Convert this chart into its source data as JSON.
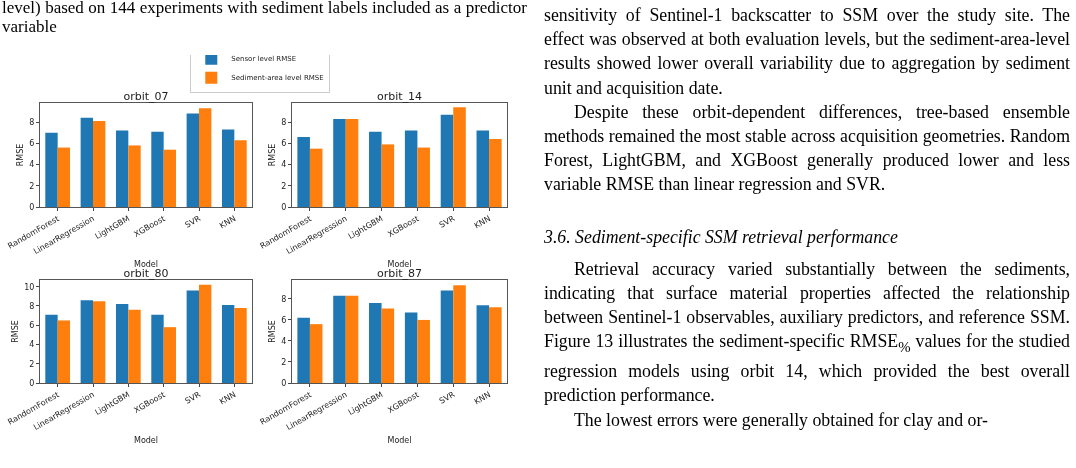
{
  "chart_data": [
    {
      "type": "bar",
      "title": "orbit_07",
      "xlabel": "Model",
      "ylabel": "RMSE",
      "legend": "top",
      "categories": [
        "RandomForest",
        "LinearRegression",
        "LightGBM",
        "XGBoost",
        "SVR",
        "KNN"
      ],
      "ylim": [
        0,
        9.8
      ],
      "yticks": [
        0,
        2,
        4,
        6,
        8
      ],
      "series": [
        {
          "name": "Sensor level RMSE",
          "color": "#1f77b4",
          "values": [
            7.0,
            8.4,
            7.2,
            7.1,
            8.8,
            7.3
          ]
        },
        {
          "name": "Sediment-area level RMSE",
          "color": "#ff7f0e",
          "values": [
            5.6,
            8.1,
            5.8,
            5.4,
            9.3,
            6.3
          ]
        }
      ]
    },
    {
      "type": "bar",
      "title": "orbit_14",
      "xlabel": "Model",
      "ylabel": "RMSE",
      "categories": [
        "RandomForest",
        "LinearRegression",
        "LightGBM",
        "XGBoost",
        "SVR",
        "KNN"
      ],
      "ylim": [
        0,
        9.8
      ],
      "yticks": [
        0,
        2,
        4,
        6,
        8
      ],
      "series": [
        {
          "color": "#1f77b4",
          "values": [
            6.6,
            8.3,
            7.1,
            7.2,
            8.7,
            7.2
          ]
        },
        {
          "color": "#ff7f0e",
          "values": [
            5.5,
            8.3,
            5.9,
            5.6,
            9.4,
            6.4
          ]
        }
      ]
    },
    {
      "type": "bar",
      "title": "orbit_80",
      "xlabel": "Model",
      "ylabel": "RMSE",
      "categories": [
        "RandomForest",
        "LinearRegression",
        "LightGBM",
        "XGBoost",
        "SVR",
        "KNN"
      ],
      "ylim": [
        0,
        10.7
      ],
      "yticks": [
        0,
        2,
        4,
        6,
        8,
        10
      ],
      "series": [
        {
          "color": "#1f77b4",
          "values": [
            7.1,
            8.6,
            8.2,
            7.1,
            9.6,
            8.1
          ]
        },
        {
          "color": "#ff7f0e",
          "values": [
            6.5,
            8.5,
            7.6,
            5.8,
            10.2,
            7.8
          ]
        }
      ]
    },
    {
      "type": "bar",
      "title": "orbit_87",
      "xlabel": "Model",
      "ylabel": "RMSE",
      "categories": [
        "RandomForest",
        "LinearRegression",
        "LightGBM",
        "XGBoost",
        "SVR",
        "KNN"
      ],
      "ylim": [
        0,
        9.8
      ],
      "yticks": [
        0,
        2,
        4,
        6,
        8
      ],
      "series": [
        {
          "color": "#1f77b4",
          "values": [
            6.2,
            8.3,
            7.6,
            6.7,
            8.8,
            7.4
          ]
        },
        {
          "color": "#ff7f0e",
          "values": [
            5.6,
            8.3,
            7.1,
            6.0,
            9.3,
            7.2
          ]
        }
      ]
    },
    {
      "type": "other",
      "annotations": [
        "level) based on 144 experiments with sediment labels included as a predictor variable",
        "sensitivity of Sentinel-1 backscatter to SSM over the study site. The effect was observed at both evaluation levels, but the sediment-area-level results showed lower overall variability due to aggregation by sediment unit and acquisition date.",
        "Despite these orbit-dependent differences, tree-based ensemble methods remained the most stable across acquisition geometries. Random Forest, LightGBM, and XGBoost generally produced lower and less variable RMSE than linear regression and SVR.",
        "3.6. Sediment-specific SSM retrieval performance",
        "Retrieval accuracy varied substantially between the sediments, indicating that surface material properties affected the relationship between Sentinel-1 observables, auxiliary predictors, and reference SSM. Figure 13 illustrates the sediment-specific RMSE$_{%}$ values for the studied regression models using orbit 14, which provided the best overall prediction performance.",
        "The lowest errors were generally obtained for clay and or-"
      ]
    }
  ]
}
